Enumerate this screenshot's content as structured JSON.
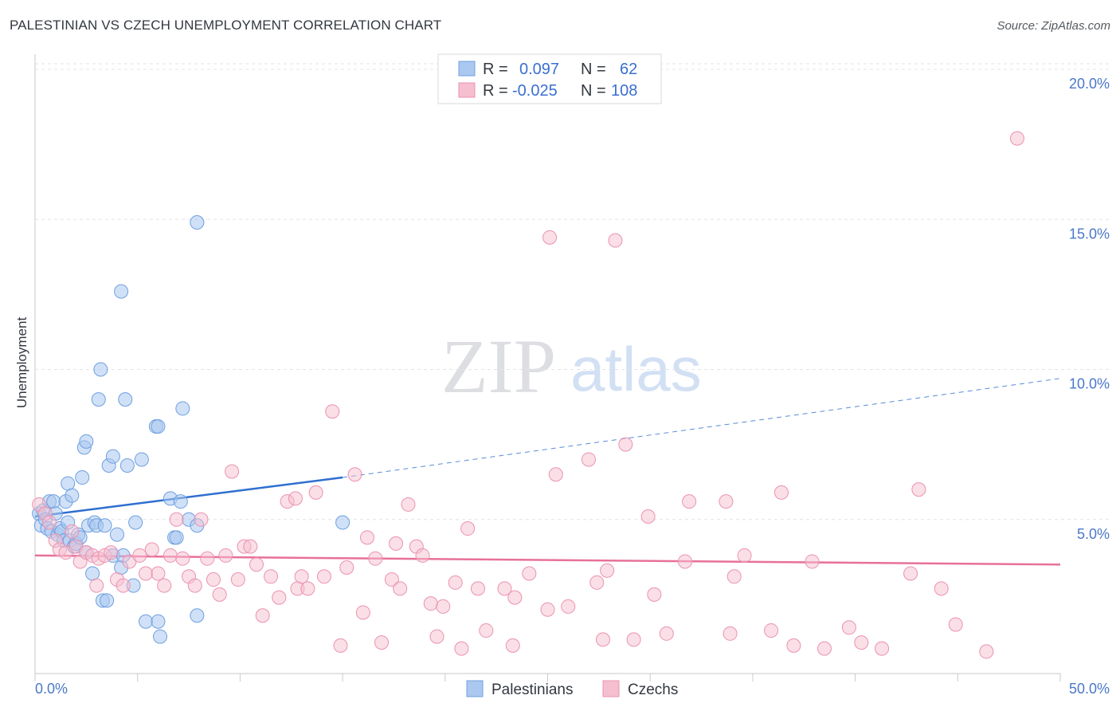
{
  "title": "PALESTINIAN VS CZECH UNEMPLOYMENT CORRELATION CHART",
  "source": "Source: ZipAtlas.com",
  "watermark": {
    "zip": "ZIP",
    "atlas": "atlas"
  },
  "colors": {
    "blue_fill": "#aac8f0",
    "blue_stroke": "#6f9fe0",
    "blue_line": "#2f6fd0",
    "pink_fill": "#f6bfd0",
    "pink_stroke": "#eb92b0",
    "pink_line": "#e8709a",
    "grid": "#e2e4e8",
    "tick_text": "#4a78c8"
  },
  "legend": {
    "rows": [
      {
        "r_label": "R =",
        "r_value": "0.097",
        "n_label": "N =",
        "n_value": "62"
      },
      {
        "r_label": "R =",
        "r_value": "-0.025",
        "n_label": "N =",
        "n_value": "108"
      }
    ]
  },
  "chart_data": {
    "type": "scatter",
    "title": "PALESTINIAN VS CZECH UNEMPLOYMENT CORRELATION CHART",
    "xlabel": "",
    "ylabel": "Unemployment",
    "xlim": [
      0,
      50
    ],
    "ylim": [
      0,
      20
    ],
    "x_tick_labels": [
      "0.0%",
      "50.0%"
    ],
    "y_tick_labels": [
      "5.0%",
      "10.0%",
      "15.0%",
      "20.0%"
    ],
    "y_ticks": [
      5,
      10,
      15,
      20
    ],
    "legend_entries": [
      "Palestinians",
      "Czechs"
    ],
    "series": [
      {
        "name": "Palestinians",
        "trend": {
          "x0": 0,
          "y0": 5.1,
          "x1": 15,
          "y1": 6.4,
          "dash_x1": 50,
          "dash_y1": 9.7
        },
        "points": [
          [
            0.2,
            5.2
          ],
          [
            0.3,
            4.8
          ],
          [
            0.4,
            5.3
          ],
          [
            0.5,
            5.0
          ],
          [
            0.6,
            4.7
          ],
          [
            0.7,
            5.6
          ],
          [
            0.8,
            4.6
          ],
          [
            0.9,
            5.6
          ],
          [
            1.0,
            5.2
          ],
          [
            1.1,
            4.5
          ],
          [
            1.2,
            4.7
          ],
          [
            1.3,
            4.6
          ],
          [
            1.4,
            4.3
          ],
          [
            1.5,
            5.6
          ],
          [
            1.6,
            4.9
          ],
          [
            1.6,
            6.2
          ],
          [
            1.7,
            4.3
          ],
          [
            1.8,
            5.8
          ],
          [
            1.9,
            4.1
          ],
          [
            2.0,
            4.2
          ],
          [
            2.1,
            4.5
          ],
          [
            2.2,
            4.4
          ],
          [
            2.3,
            6.4
          ],
          [
            2.4,
            7.4
          ],
          [
            2.5,
            7.6
          ],
          [
            2.5,
            3.9
          ],
          [
            2.6,
            4.8
          ],
          [
            2.8,
            3.2
          ],
          [
            2.9,
            4.9
          ],
          [
            3.0,
            4.8
          ],
          [
            3.1,
            9.0
          ],
          [
            3.2,
            10.0
          ],
          [
            3.3,
            2.3
          ],
          [
            3.4,
            4.8
          ],
          [
            3.5,
            2.3
          ],
          [
            3.6,
            6.8
          ],
          [
            3.8,
            7.1
          ],
          [
            3.8,
            3.8
          ],
          [
            4.0,
            4.5
          ],
          [
            4.2,
            3.4
          ],
          [
            4.2,
            12.6
          ],
          [
            4.3,
            3.8
          ],
          [
            4.4,
            9.0
          ],
          [
            4.5,
            6.8
          ],
          [
            4.8,
            2.8
          ],
          [
            4.9,
            4.9
          ],
          [
            5.2,
            7.0
          ],
          [
            5.4,
            1.6
          ],
          [
            5.9,
            8.1
          ],
          [
            6.0,
            8.1
          ],
          [
            6.0,
            1.6
          ],
          [
            6.1,
            1.1
          ],
          [
            6.6,
            5.7
          ],
          [
            6.8,
            4.4
          ],
          [
            6.9,
            4.4
          ],
          [
            7.1,
            5.6
          ],
          [
            7.2,
            8.7
          ],
          [
            7.5,
            5.0
          ],
          [
            7.9,
            1.8
          ],
          [
            7.9,
            4.8
          ],
          [
            7.9,
            14.9
          ],
          [
            15.0,
            4.9
          ]
        ]
      },
      {
        "name": "Czechs",
        "trend": {
          "x0": 0,
          "y0": 3.8,
          "x1": 50,
          "y1": 3.5
        },
        "points": [
          [
            0.2,
            5.5
          ],
          [
            0.5,
            5.2
          ],
          [
            0.7,
            4.9
          ],
          [
            1.0,
            4.3
          ],
          [
            1.2,
            4.0
          ],
          [
            1.5,
            3.9
          ],
          [
            1.8,
            4.6
          ],
          [
            2.0,
            4.1
          ],
          [
            2.2,
            3.6
          ],
          [
            2.5,
            3.9
          ],
          [
            2.8,
            3.8
          ],
          [
            3.0,
            2.8
          ],
          [
            3.1,
            3.7
          ],
          [
            3.4,
            3.8
          ],
          [
            3.7,
            3.9
          ],
          [
            4.0,
            3.0
          ],
          [
            4.3,
            2.8
          ],
          [
            4.6,
            3.6
          ],
          [
            5.1,
            3.8
          ],
          [
            5.4,
            3.2
          ],
          [
            5.7,
            4.0
          ],
          [
            6.0,
            3.2
          ],
          [
            6.3,
            2.8
          ],
          [
            6.6,
            3.8
          ],
          [
            6.9,
            5.0
          ],
          [
            7.2,
            3.7
          ],
          [
            7.5,
            3.1
          ],
          [
            7.8,
            2.8
          ],
          [
            8.1,
            5.0
          ],
          [
            8.4,
            3.7
          ],
          [
            8.7,
            3.0
          ],
          [
            9.0,
            2.5
          ],
          [
            9.3,
            3.8
          ],
          [
            9.6,
            6.6
          ],
          [
            9.9,
            3.0
          ],
          [
            10.2,
            4.1
          ],
          [
            10.5,
            4.1
          ],
          [
            10.8,
            3.5
          ],
          [
            11.1,
            1.8
          ],
          [
            11.5,
            3.1
          ],
          [
            11.9,
            2.4
          ],
          [
            12.3,
            5.6
          ],
          [
            12.7,
            5.7
          ],
          [
            12.8,
            2.7
          ],
          [
            13.0,
            3.1
          ],
          [
            13.3,
            2.7
          ],
          [
            13.7,
            5.9
          ],
          [
            14.1,
            3.1
          ],
          [
            14.5,
            8.6
          ],
          [
            14.9,
            0.8
          ],
          [
            15.2,
            3.4
          ],
          [
            15.6,
            6.5
          ],
          [
            16.0,
            1.9
          ],
          [
            16.2,
            4.4
          ],
          [
            16.6,
            3.7
          ],
          [
            16.9,
            0.9
          ],
          [
            17.4,
            3.0
          ],
          [
            17.6,
            4.2
          ],
          [
            17.8,
            2.7
          ],
          [
            18.2,
            5.5
          ],
          [
            18.6,
            4.1
          ],
          [
            18.9,
            3.8
          ],
          [
            19.3,
            2.2
          ],
          [
            19.6,
            1.1
          ],
          [
            19.9,
            2.1
          ],
          [
            20.5,
            2.9
          ],
          [
            20.8,
            0.7
          ],
          [
            21.1,
            4.7
          ],
          [
            21.6,
            2.7
          ],
          [
            22.0,
            1.3
          ],
          [
            22.9,
            2.7
          ],
          [
            23.3,
            0.8
          ],
          [
            23.4,
            2.4
          ],
          [
            24.1,
            3.2
          ],
          [
            25.0,
            2.0
          ],
          [
            25.1,
            14.4
          ],
          [
            25.4,
            6.5
          ],
          [
            26.0,
            2.1
          ],
          [
            27.0,
            7.0
          ],
          [
            27.4,
            2.9
          ],
          [
            27.7,
            1.0
          ],
          [
            27.9,
            3.3
          ],
          [
            28.3,
            14.3
          ],
          [
            28.8,
            7.5
          ],
          [
            29.2,
            1.0
          ],
          [
            29.9,
            5.1
          ],
          [
            30.2,
            2.5
          ],
          [
            30.8,
            1.2
          ],
          [
            31.7,
            3.6
          ],
          [
            31.9,
            5.6
          ],
          [
            33.7,
            5.6
          ],
          [
            33.9,
            1.2
          ],
          [
            34.1,
            3.1
          ],
          [
            34.6,
            3.8
          ],
          [
            35.9,
            1.3
          ],
          [
            36.4,
            5.9
          ],
          [
            37.0,
            0.8
          ],
          [
            37.9,
            3.6
          ],
          [
            38.5,
            0.7
          ],
          [
            39.7,
            1.4
          ],
          [
            40.3,
            0.9
          ],
          [
            41.3,
            0.7
          ],
          [
            42.7,
            3.2
          ],
          [
            43.1,
            6.0
          ],
          [
            44.2,
            2.7
          ],
          [
            44.9,
            1.5
          ],
          [
            46.4,
            0.6
          ],
          [
            47.9,
            17.7
          ]
        ]
      }
    ]
  }
}
